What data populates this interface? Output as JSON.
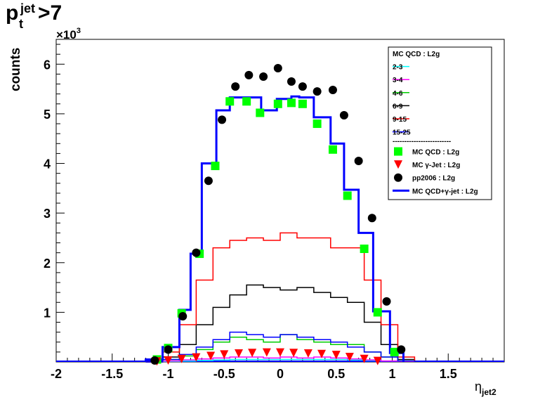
{
  "chart_data": {
    "type": "histogram",
    "title_main": "p",
    "title_sup": "jet",
    "title_sub": "t",
    "title_cut": ">7",
    "ylabel": "counts",
    "y_multiplier": "×10",
    "y_multiplier_exp": "3",
    "xlabel": "η",
    "xlabel_sub": "jet2",
    "xlim": [
      -2.0,
      2.0
    ],
    "ylim": [
      0,
      6.5
    ],
    "x_ticks": [
      -2,
      -1.5,
      -1,
      -0.5,
      0,
      0.5,
      1,
      1.5
    ],
    "x_tick_labels": [
      "-2",
      "-1.5",
      "-1",
      "-0.5",
      "0",
      "0.5",
      "1",
      "1.5"
    ],
    "y_ticks": [
      1,
      2,
      3,
      4,
      5,
      6
    ],
    "y_tick_labels": [
      "1",
      "2",
      "3",
      "4",
      "5",
      "6"
    ],
    "bin_edges": [
      -1.2,
      -1.05,
      -0.9,
      -0.75,
      -0.6,
      -0.45,
      -0.3,
      -0.15,
      0.0,
      0.15,
      0.3,
      0.45,
      0.6,
      0.75,
      0.9,
      1.05,
      1.2
    ],
    "bin_centers": [
      -1.1,
      -1.0,
      -0.85,
      -0.7,
      -0.55,
      -0.4,
      -0.25,
      -0.1,
      0.05,
      0.2,
      0.35,
      0.5,
      0.65,
      0.8,
      0.95,
      1.05
    ],
    "series": [
      {
        "name": "2-3",
        "color": "#00ffff",
        "style": "hist",
        "values": [
          0,
          0.01,
          0.02,
          0.03,
          0.04,
          0.05,
          0.05,
          0.05,
          0.05,
          0.05,
          0.05,
          0.05,
          0.04,
          0.03,
          0.02,
          0.01
        ]
      },
      {
        "name": "3-4",
        "color": "#ff00ff",
        "style": "hist",
        "values": [
          0,
          0.02,
          0.04,
          0.06,
          0.08,
          0.1,
          0.1,
          0.08,
          0.1,
          0.08,
          0.1,
          0.08,
          0.06,
          0.04,
          0.02,
          0.01
        ]
      },
      {
        "name": "4-6",
        "color": "#00cc00",
        "style": "hist",
        "values": [
          0,
          0.05,
          0.12,
          0.25,
          0.4,
          0.5,
          0.45,
          0.4,
          0.55,
          0.45,
          0.4,
          0.35,
          0.35,
          0.2,
          0.1,
          0.02
        ]
      },
      {
        "name": "6-9",
        "color": "#000000",
        "style": "hist",
        "values": [
          0,
          0.1,
          0.35,
          0.75,
          1.1,
          1.35,
          1.55,
          1.5,
          1.45,
          1.5,
          1.4,
          1.3,
          1.2,
          0.8,
          0.35,
          0.05
        ]
      },
      {
        "name": "9-15",
        "color": "#ff0000",
        "style": "hist",
        "values": [
          0,
          0.2,
          0.75,
          1.65,
          2.3,
          2.45,
          2.5,
          2.45,
          2.6,
          2.5,
          2.5,
          2.3,
          2.3,
          1.65,
          0.75,
          0.1
        ]
      },
      {
        "name": "15-25",
        "color": "#0000ff",
        "style": "hist",
        "values": [
          0,
          0.05,
          0.15,
          0.3,
          0.45,
          0.6,
          0.55,
          0.5,
          0.55,
          0.5,
          0.45,
          0.4,
          0.3,
          0.2,
          0.1,
          0.02
        ]
      },
      {
        "name": "MC QCD : L2g",
        "color": "#00ff00",
        "style": "square",
        "values": [
          0.05,
          0.28,
          0.98,
          2.18,
          3.95,
          5.25,
          5.25,
          5.02,
          5.2,
          5.22,
          5.2,
          4.8,
          4.28,
          3.35,
          2.28,
          1.0,
          0.2
        ]
      },
      {
        "name": "MC γ-Jet : L2g",
        "color": "#ff0000",
        "style": "triangle",
        "values": [
          0.01,
          0.03,
          0.06,
          0.09,
          0.12,
          0.15,
          0.17,
          0.18,
          0.19,
          0.19,
          0.18,
          0.17,
          0.16,
          0.14,
          0.1,
          0.06,
          0.02
        ]
      },
      {
        "name": "pp2006 : L2g",
        "color": "#000000",
        "style": "circle",
        "values": [
          0.03,
          0.25,
          0.92,
          2.2,
          3.65,
          4.88,
          5.55,
          5.78,
          5.75,
          5.92,
          5.65,
          5.55,
          5.45,
          5.48,
          4.97,
          4.05,
          2.9,
          1.22,
          0.25
        ]
      },
      {
        "name": "MC QCD+γ-jet : L2g",
        "color": "#0000ff",
        "style": "hist-thick",
        "values": [
          0.05,
          0.3,
          1.05,
          2.18,
          4.0,
          5.07,
          5.33,
          5.33,
          5.07,
          5.3,
          5.35,
          5.33,
          4.93,
          4.4,
          3.47,
          2.6,
          1.02,
          0.18
        ]
      }
    ],
    "marker_x": {
      "square": [
        -1.1,
        -1.0,
        -0.88,
        -0.72,
        -0.58,
        -0.45,
        -0.3,
        -0.18,
        -0.02,
        0.1,
        0.2,
        0.33,
        0.47,
        0.6,
        0.75,
        0.87,
        1.02
      ],
      "triangle": [
        -1.1,
        -1.0,
        -0.88,
        -0.75,
        -0.62,
        -0.5,
        -0.37,
        -0.25,
        -0.12,
        0.0,
        0.12,
        0.25,
        0.37,
        0.5,
        0.62,
        0.75,
        0.87
      ],
      "circle": [
        -1.12,
        -1.0,
        -0.87,
        -0.75,
        -0.64,
        -0.52,
        -0.4,
        -0.28,
        -0.15,
        -0.02,
        0.1,
        0.2,
        0.33,
        0.47,
        0.57,
        0.7,
        0.82,
        0.95,
        1.08
      ],
      "hist_thick_edges": [
        -1.2,
        -1.05,
        -0.9,
        -0.8,
        -0.7,
        -0.57,
        -0.45,
        -0.3,
        -0.17,
        -0.03,
        0.1,
        0.17,
        0.3,
        0.45,
        0.57,
        0.7,
        0.83,
        0.98,
        1.1
      ]
    },
    "legend": {
      "placement": "top-right",
      "header": "MC QCD : L2g",
      "separator": "-------------------------"
    }
  }
}
